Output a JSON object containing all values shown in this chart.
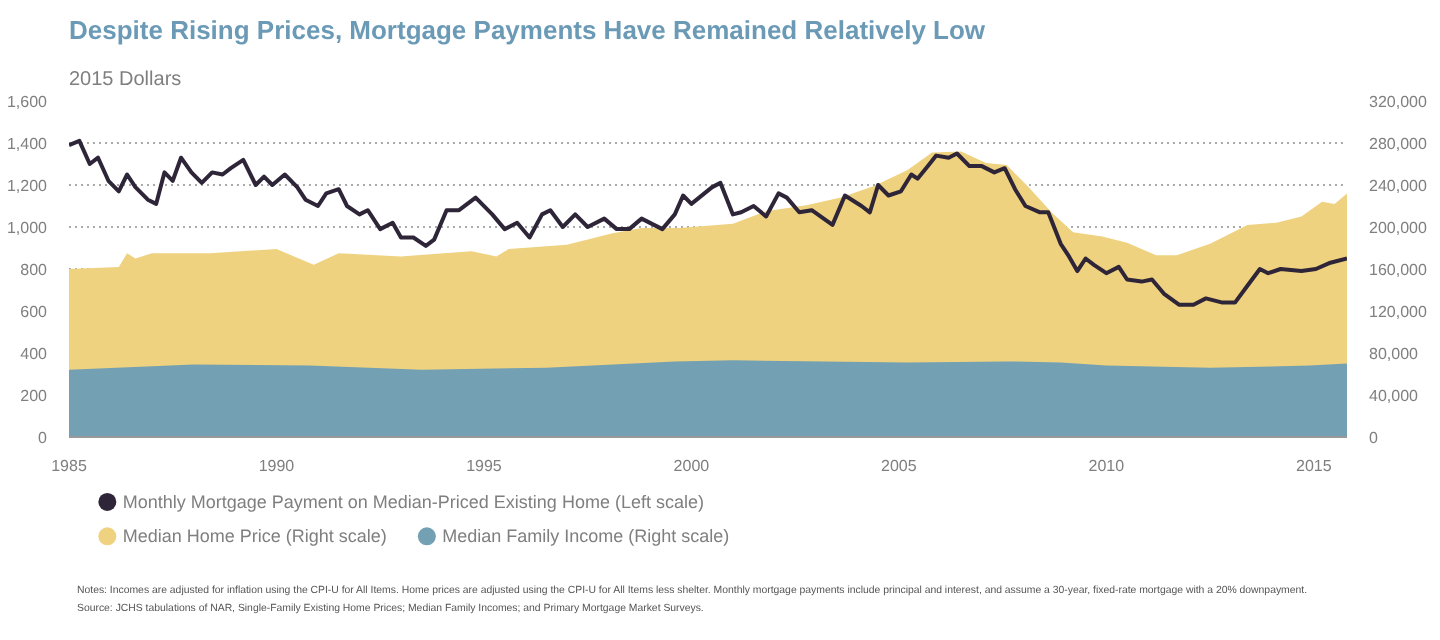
{
  "chart_data": {
    "type": "line",
    "title": "Despite Rising Prices, Mortgage Payments Have Remained Relatively Low",
    "subtitle": "2015 Dollars",
    "xlim": [
      1985,
      2015.8
    ],
    "xticks": [
      1985,
      1990,
      1995,
      2000,
      2005,
      2010,
      2015
    ],
    "ylim": [
      0,
      1600
    ],
    "yticks": [
      0,
      200,
      400,
      600,
      800,
      {
        "value": 1000,
        "label": "1,000"
      },
      {
        "value": 1200,
        "label": "1,200"
      },
      {
        "value": 1400,
        "label": "1,400"
      },
      {
        "value": 1600,
        "label": "1,600"
      }
    ],
    "y2lim": [
      0,
      320000
    ],
    "y2ticks": [
      {
        "value": 0,
        "label": "0"
      },
      {
        "value": 40000,
        "label": "40,000"
      },
      {
        "value": 80000,
        "label": "80,000"
      },
      {
        "value": 120000,
        "label": "120,000"
      },
      {
        "value": 160000,
        "label": "160,000"
      },
      {
        "value": 200000,
        "label": "200,000"
      },
      {
        "value": 240000,
        "label": "240,000"
      },
      {
        "value": 280000,
        "label": "280,000"
      },
      {
        "value": 320000,
        "label": "320,000"
      }
    ],
    "grid": "y",
    "legend": "bottom",
    "series": [
      {
        "name": "Median Home Price (Right scale)",
        "type": "area",
        "axis": "y2",
        "color": "#efd27f",
        "x": [
          1985,
          1986.2,
          1986.4,
          1986.6,
          1987,
          1988.4,
          1990,
          1990.9,
          1991.5,
          1993,
          1994.7,
          1995.3,
          1995.6,
          1997,
          1998.1,
          1998.8,
          1999.7,
          2001,
          2001.8,
          2002.8,
          2003.6,
          2004.4,
          2005.2,
          2005.8,
          2006.5,
          2007.1,
          2007.6,
          2008.1,
          2008.7,
          2009.2,
          2009.9,
          2010.5,
          2011.2,
          2011.7,
          2012.5,
          2013.4,
          2014.1,
          2014.7,
          2015.2,
          2015.5,
          2015.8
        ],
        "values": [
          160000,
          162000,
          175000,
          170000,
          175000,
          175000,
          179000,
          164000,
          175000,
          172000,
          177000,
          172000,
          179000,
          183000,
          194000,
          199000,
          199000,
          203000,
          215000,
          221000,
          228000,
          239000,
          254000,
          271000,
          272000,
          261000,
          259000,
          239000,
          213000,
          195000,
          191000,
          185000,
          173000,
          173000,
          184000,
          202000,
          204000,
          210000,
          224000,
          222000,
          232000
        ]
      },
      {
        "name": "Median Family Income (Right scale)",
        "type": "area",
        "axis": "y2",
        "color": "#73a0b3",
        "x": [
          1985,
          1988,
          1990.8,
          1993.5,
          1996.5,
          1999.6,
          2001,
          2005.2,
          2007.6,
          2008.9,
          2010,
          2012.5,
          2014.9,
          2015.8
        ],
        "values": [
          64000,
          69000,
          68000,
          64000,
          66000,
          72000,
          73000,
          71000,
          72000,
          71000,
          68000,
          66000,
          68000,
          70000
        ]
      },
      {
        "name": "Monthly Mortgage Payment on Median-Priced Existing Home (Left scale)",
        "color": "#2f2538",
        "x": [
          1985,
          1985.25,
          1985.5,
          1985.7,
          1985.95,
          1986.2,
          1986.4,
          1986.6,
          1986.9,
          1987.1,
          1987.3,
          1987.5,
          1987.7,
          1987.95,
          1988.2,
          1988.45,
          1988.7,
          1988.9,
          1989.2,
          1989.5,
          1989.7,
          1989.9,
          1990.2,
          1990.5,
          1990.7,
          1991,
          1991.2,
          1991.5,
          1991.7,
          1992,
          1992.2,
          1992.5,
          1992.8,
          1993,
          1993.3,
          1993.6,
          1993.8,
          1994.1,
          1994.4,
          1994.8,
          1995.2,
          1995.5,
          1995.8,
          1996.1,
          1996.4,
          1996.6,
          1996.9,
          1997.2,
          1997.5,
          1997.9,
          1998.2,
          1998.5,
          1998.8,
          1999.3,
          1999.6,
          1999.8,
          2000,
          2000.5,
          2000.7,
          2001,
          2001.2,
          2001.5,
          2001.8,
          2002.1,
          2002.3,
          2002.6,
          2002.9,
          2003.4,
          2003.7,
          2004.1,
          2004.3,
          2004.5,
          2004.75,
          2005.05,
          2005.3,
          2005.45,
          2005.7,
          2005.9,
          2006.2,
          2006.4,
          2006.7,
          2007,
          2007.3,
          2007.55,
          2007.8,
          2008.05,
          2008.4,
          2008.6,
          2008.9,
          2009.1,
          2009.3,
          2009.5,
          2009.7,
          2010,
          2010.3,
          2010.5,
          2010.85,
          2011.1,
          2011.4,
          2011.75,
          2012.1,
          2012.4,
          2012.8,
          2013.1,
          2013.4,
          2013.7,
          2013.9,
          2014.2,
          2014.7,
          2015.05,
          2015.4,
          2015.8
        ],
        "values": [
          1390,
          1410,
          1300,
          1330,
          1220,
          1170,
          1250,
          1190,
          1130,
          1110,
          1260,
          1220,
          1330,
          1260,
          1210,
          1260,
          1250,
          1280,
          1320,
          1200,
          1240,
          1200,
          1250,
          1190,
          1130,
          1100,
          1160,
          1180,
          1100,
          1060,
          1080,
          990,
          1020,
          950,
          950,
          910,
          940,
          1080,
          1080,
          1140,
          1060,
          990,
          1020,
          950,
          1060,
          1080,
          1000,
          1060,
          1000,
          1040,
          990,
          990,
          1040,
          990,
          1060,
          1150,
          1110,
          1190,
          1210,
          1060,
          1070,
          1100,
          1050,
          1160,
          1140,
          1070,
          1080,
          1010,
          1150,
          1100,
          1070,
          1200,
          1150,
          1170,
          1250,
          1230,
          1290,
          1340,
          1330,
          1350,
          1290,
          1290,
          1260,
          1280,
          1180,
          1100,
          1070,
          1070,
          920,
          860,
          790,
          850,
          820,
          780,
          810,
          750,
          740,
          750,
          680,
          630,
          630,
          660,
          640,
          640,
          720,
          800,
          780,
          800,
          790,
          800,
          830,
          850
        ]
      }
    ],
    "annotations": [
      "Notes: Incomes are adjusted for inflation using the CPI-U for All Items. Home prices are adjusted using the CPI-U for All Items less shelter. Monthly mortgage payments include principal and interest, and assume a 30-year, fixed-rate mortgage with a 20% downpayment.",
      "Source: JCHS tabulations of NAR, Single-Family Existing Home Prices; Median Family Incomes; and Primary Mortgage Market Surveys."
    ]
  }
}
